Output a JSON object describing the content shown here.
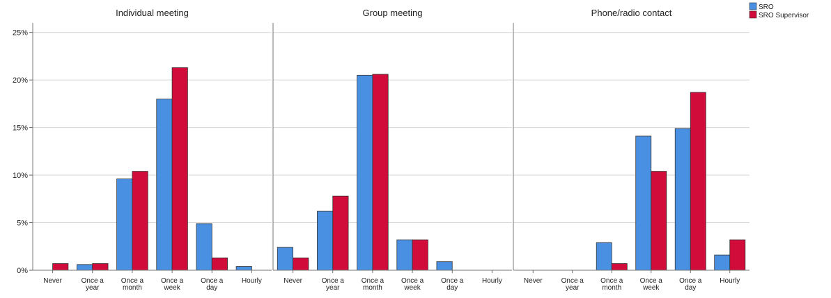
{
  "chart_data": {
    "type": "bar",
    "facets": [
      "Individual meeting",
      "Group meeting",
      "Phone/radio contact"
    ],
    "categories": [
      "Never",
      "Once a year",
      "Once a month",
      "Once a week",
      "Once a day",
      "Hourly"
    ],
    "category_label_lines": [
      [
        "Never"
      ],
      [
        "Once a",
        "year"
      ],
      [
        "Once a",
        "month"
      ],
      [
        "Once a",
        "week"
      ],
      [
        "Once a",
        "day"
      ],
      [
        "Hourly"
      ]
    ],
    "y_ticks": [
      0,
      5,
      10,
      15,
      20,
      25
    ],
    "y_tick_labels": [
      "0%",
      "5%",
      "10%",
      "15%",
      "20%",
      "25%"
    ],
    "ylim": [
      0,
      26
    ],
    "grid": true,
    "legend_placement": "top-right",
    "series": [
      {
        "name": "SRO",
        "color": "#4a90e2",
        "panels": [
          [
            0,
            0.6,
            9.6,
            18.0,
            4.9,
            0.4
          ],
          [
            2.4,
            6.2,
            20.5,
            3.2,
            0.9,
            0
          ],
          [
            0,
            0,
            2.9,
            14.1,
            14.9,
            1.6
          ]
        ]
      },
      {
        "name": "SRO Supervisor",
        "color": "#d10b3a",
        "panels": [
          [
            0.7,
            0.7,
            10.4,
            21.3,
            1.3,
            0
          ],
          [
            1.3,
            7.8,
            20.6,
            3.2,
            0,
            0
          ],
          [
            0,
            0,
            0.7,
            10.4,
            18.7,
            3.2
          ]
        ]
      }
    ]
  }
}
